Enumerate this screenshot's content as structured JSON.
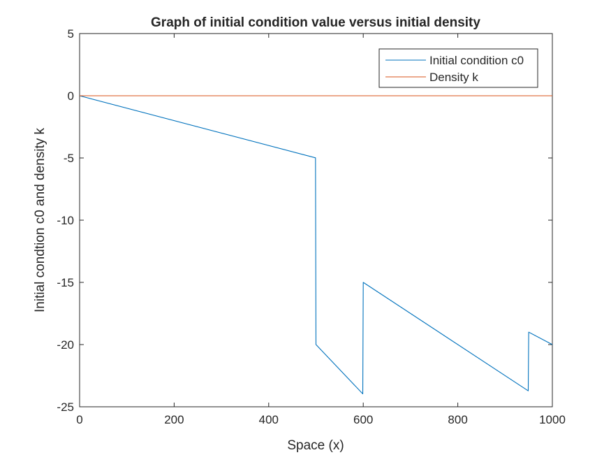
{
  "chart_data": {
    "type": "line",
    "title": "Graph of initial condition value versus initial density",
    "xlabel": "Space (x)",
    "ylabel": "Initial condtion c0 and density k",
    "xlim": [
      0,
      1000
    ],
    "ylim": [
      -25,
      5
    ],
    "xticks": [
      0,
      200,
      400,
      600,
      800,
      1000
    ],
    "yticks": [
      5,
      0,
      -5,
      -10,
      -15,
      -20,
      -25
    ],
    "grid": false,
    "legend_position": "top-right",
    "series": [
      {
        "name": "Initial condition c0",
        "color": "#0072BD",
        "x": [
          0,
          499,
          500,
          599,
          600,
          949,
          950,
          1000
        ],
        "y": [
          0,
          -4.99,
          -20.0,
          -23.96,
          -15.0,
          -23.72,
          -19.0,
          -20.0
        ]
      },
      {
        "name": "Density k",
        "color": "#D95319",
        "x": [
          0,
          1000
        ],
        "y": [
          0,
          0
        ]
      }
    ]
  }
}
